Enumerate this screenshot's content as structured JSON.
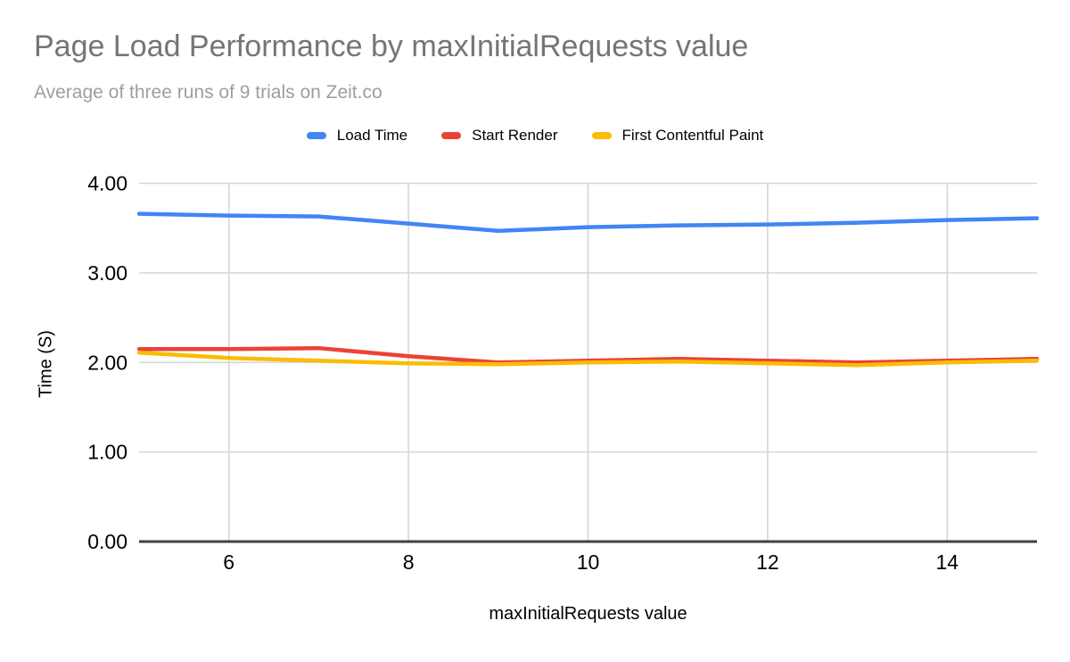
{
  "chart_data": {
    "type": "line",
    "title": "Page Load Performance by maxInitialRequests value",
    "subtitle": "Average of three runs of 9 trials on Zeit.co",
    "xlabel": "maxInitialRequests value",
    "ylabel": "Time (S)",
    "x": [
      5,
      6,
      7,
      8,
      9,
      10,
      11,
      12,
      13,
      14,
      15
    ],
    "series": [
      {
        "name": "Load Time",
        "color": "#4285F4",
        "values": [
          3.66,
          3.64,
          3.63,
          3.55,
          3.47,
          3.51,
          3.53,
          3.54,
          3.56,
          3.59,
          3.61
        ]
      },
      {
        "name": "Start Render",
        "color": "#EA4335",
        "values": [
          2.15,
          2.15,
          2.16,
          2.07,
          2.0,
          2.02,
          2.04,
          2.02,
          2.0,
          2.02,
          2.04
        ]
      },
      {
        "name": "First Contentful Paint",
        "color": "#FBBC04",
        "values": [
          2.11,
          2.05,
          2.02,
          1.99,
          1.98,
          2.0,
          2.01,
          1.99,
          1.97,
          2.0,
          2.02
        ]
      }
    ],
    "xticks": [
      6,
      8,
      10,
      12,
      14
    ],
    "yticks": [
      {
        "value": 0,
        "label": "0.00"
      },
      {
        "value": 1,
        "label": "1.00"
      },
      {
        "value": 2,
        "label": "2.00"
      },
      {
        "value": 3,
        "label": "3.00"
      },
      {
        "value": 4,
        "label": "4.00"
      }
    ],
    "xlim": [
      5,
      15
    ],
    "ylim": [
      0,
      4
    ],
    "grid": true,
    "legend_position": "top",
    "colors": {
      "title_text": "#757575",
      "subtitle_text": "#9E9E9E",
      "tick_label": "#000000",
      "gridline": "#D6D6D6",
      "axis_line": "#424242"
    }
  }
}
